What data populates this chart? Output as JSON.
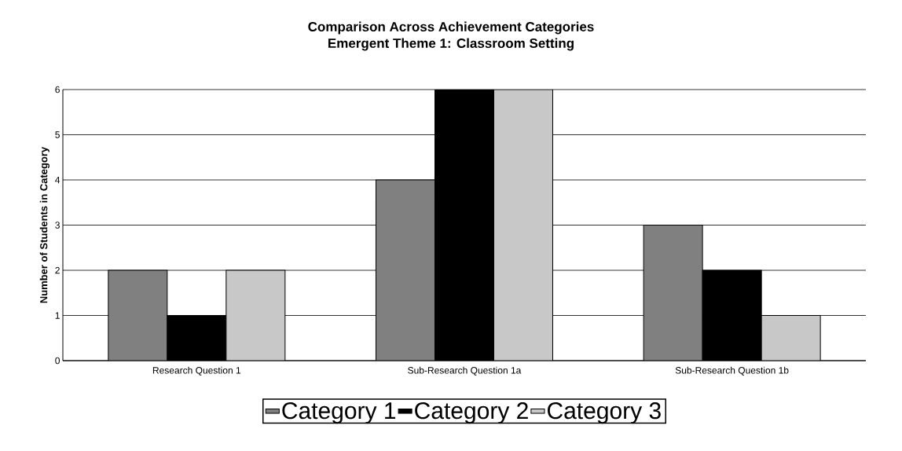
{
  "chart_data": {
    "type": "bar",
    "title": "Comparison Across Achievement Categories",
    "subtitle": "Emergent Theme 1: Classroom Setting",
    "ylabel": "Number of Students in Category",
    "categories": [
      "Research Question 1",
      "Sub-Research Question 1a",
      "Sub-Research Question 1b"
    ],
    "series": [
      {
        "name": "Category 1",
        "color": "#808080",
        "values": [
          2,
          4,
          3
        ]
      },
      {
        "name": "Category 2",
        "color": "#000000",
        "values": [
          1,
          6,
          2
        ]
      },
      {
        "name": "Category 3",
        "color": "#c8c8c8",
        "values": [
          2,
          6,
          1
        ]
      }
    ],
    "ylim": [
      0,
      6
    ],
    "yticks": [
      0,
      1,
      2,
      3,
      4,
      5,
      6
    ],
    "grid": "y",
    "legend": "bottom"
  }
}
